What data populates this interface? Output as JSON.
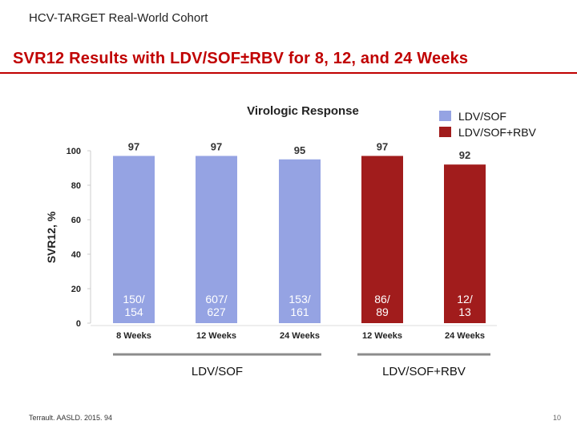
{
  "header": {
    "supertitle": "HCV-TARGET Real-World Cohort",
    "title": "SVR12 Results with LDV/SOF±RBV  for 8, 12, and 24 Weeks"
  },
  "footer": {
    "citation": "Terrault. AASLD. 2015. 94",
    "page": "10"
  },
  "colors": {
    "title": "#c00000",
    "ldv_sof": "#95a3e3",
    "ldv_sof_rbv": "#a11c1c"
  },
  "chart_data": {
    "type": "bar",
    "title": "Virologic Response",
    "ylabel": "SVR12, %",
    "xlabel": "",
    "ylim": [
      0,
      100
    ],
    "yticks": [
      0,
      20,
      40,
      60,
      80,
      100
    ],
    "categories": [
      "8 Weeks",
      "12 Weeks",
      "24 Weeks",
      "12 Weeks",
      "24 Weeks"
    ],
    "values": [
      97,
      97,
      95,
      97,
      92
    ],
    "value_labels": [
      "97",
      "97",
      "95",
      "97",
      "92"
    ],
    "counts": [
      "150/\n154",
      "607/\n627",
      "153/\n161",
      "86/\n89",
      "12/\n13"
    ],
    "series_index": [
      0,
      0,
      0,
      1,
      1
    ],
    "series": [
      {
        "name": "LDV/SOF",
        "color": "#95a3e3"
      },
      {
        "name": "LDV/SOF+RBV",
        "color": "#a11c1c"
      }
    ],
    "groups": [
      {
        "label": "LDV/SOF",
        "bars": [
          0,
          1,
          2
        ]
      },
      {
        "label": "LDV/SOF+RBV",
        "bars": [
          3,
          4
        ]
      }
    ],
    "legend_position": "top-right"
  }
}
